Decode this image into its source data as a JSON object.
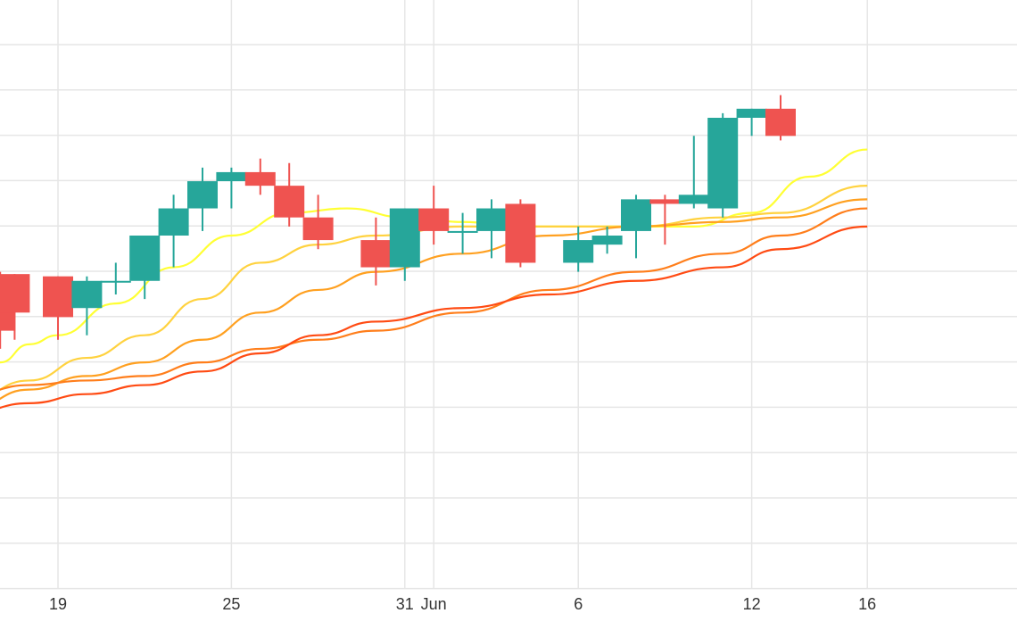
{
  "chart_data": {
    "type": "candlestick",
    "x_tick_labels": [
      "19",
      "25",
      "31",
      "Jun",
      "6",
      "12",
      "16"
    ],
    "x_ticks_day_index": [
      19,
      25,
      31,
      32,
      37,
      43,
      47
    ],
    "grid": true,
    "legend": "none",
    "y_range": [
      0,
      13
    ],
    "colors": {
      "up": "#26a69a",
      "down": "#ef5350",
      "grid": "#e6e6e6",
      "ma_series": [
        "#ffff33",
        "#ffd23f",
        "#ffa020",
        "#ff7e1b",
        "#ff4b13"
      ]
    },
    "candles": [
      {
        "day": 17,
        "open": 6.8,
        "high": 7.0,
        "low": 5.3,
        "close": 5.7
      },
      {
        "day": 17.5,
        "open": 6.95,
        "high": 6.95,
        "low": 5.5,
        "close": 6.1
      },
      {
        "day": 19,
        "open": 6.9,
        "high": 6.9,
        "low": 5.5,
        "close": 6.0
      },
      {
        "day": 20,
        "open": 6.2,
        "high": 6.9,
        "low": 5.6,
        "close": 6.8
      },
      {
        "day": 21,
        "open": 6.8,
        "high": 7.2,
        "low": 6.5,
        "close": 6.8
      },
      {
        "day": 22,
        "open": 6.8,
        "high": 7.8,
        "low": 6.4,
        "close": 7.8
      },
      {
        "day": 23,
        "open": 7.8,
        "high": 8.7,
        "low": 7.1,
        "close": 8.4
      },
      {
        "day": 24,
        "open": 8.4,
        "high": 9.3,
        "low": 7.9,
        "close": 9.0
      },
      {
        "day": 25,
        "open": 9.0,
        "high": 9.3,
        "low": 8.4,
        "close": 9.2
      },
      {
        "day": 26,
        "open": 9.2,
        "high": 9.5,
        "low": 8.7,
        "close": 8.9
      },
      {
        "day": 27,
        "open": 8.9,
        "high": 9.4,
        "low": 8.0,
        "close": 8.2
      },
      {
        "day": 28,
        "open": 8.2,
        "high": 8.7,
        "low": 7.5,
        "close": 7.7
      },
      {
        "day": 30,
        "open": 7.7,
        "high": 8.2,
        "low": 6.7,
        "close": 7.1
      },
      {
        "day": 31,
        "open": 7.1,
        "high": 8.4,
        "low": 6.8,
        "close": 8.4
      },
      {
        "day": 32,
        "open": 8.4,
        "high": 8.9,
        "low": 7.6,
        "close": 7.9
      },
      {
        "day": 33,
        "open": 7.9,
        "high": 8.3,
        "low": 7.4,
        "close": 7.9
      },
      {
        "day": 34,
        "open": 7.9,
        "high": 8.6,
        "low": 7.3,
        "close": 8.4
      },
      {
        "day": 35,
        "open": 8.5,
        "high": 8.6,
        "low": 7.1,
        "close": 7.2
      },
      {
        "day": 37,
        "open": 7.2,
        "high": 8.0,
        "low": 7.0,
        "close": 7.7
      },
      {
        "day": 38,
        "open": 7.6,
        "high": 8.0,
        "low": 7.4,
        "close": 7.8
      },
      {
        "day": 39,
        "open": 7.9,
        "high": 8.7,
        "low": 7.3,
        "close": 8.6
      },
      {
        "day": 40,
        "open": 8.6,
        "high": 8.7,
        "low": 7.6,
        "close": 8.5
      },
      {
        "day": 41,
        "open": 8.5,
        "high": 10.0,
        "low": 8.4,
        "close": 8.7
      },
      {
        "day": 42,
        "open": 8.4,
        "high": 10.5,
        "low": 8.2,
        "close": 10.4
      },
      {
        "day": 43,
        "open": 10.4,
        "high": 10.6,
        "low": 10.0,
        "close": 10.6
      },
      {
        "day": 44,
        "open": 10.6,
        "high": 10.9,
        "low": 9.9,
        "close": 10.0
      }
    ],
    "series": [
      {
        "values": [
          [
            16,
            4.6
          ],
          [
            17,
            5.0
          ],
          [
            18,
            5.4
          ],
          [
            19,
            5.6
          ],
          [
            21,
            6.3
          ],
          [
            23,
            7.1
          ],
          [
            25,
            7.8
          ],
          [
            27,
            8.3
          ],
          [
            29,
            8.4
          ],
          [
            31,
            8.2
          ],
          [
            33,
            8.1
          ],
          [
            35,
            8.0
          ],
          [
            37,
            8.0
          ],
          [
            39,
            8.0
          ],
          [
            41,
            8.0
          ],
          [
            43,
            8.3
          ],
          [
            45,
            9.1
          ],
          [
            47,
            9.7
          ]
        ]
      },
      {
        "values": [
          [
            16,
            4.2
          ],
          [
            18,
            4.6
          ],
          [
            20,
            5.1
          ],
          [
            22,
            5.6
          ],
          [
            24,
            6.4
          ],
          [
            26,
            7.2
          ],
          [
            28,
            7.6
          ],
          [
            30,
            7.8
          ],
          [
            33,
            8.0
          ],
          [
            36,
            8.0
          ],
          [
            39,
            8.0
          ],
          [
            42,
            8.2
          ],
          [
            44,
            8.3
          ],
          [
            47,
            8.9
          ]
        ]
      },
      {
        "values": [
          [
            16,
            4.0
          ],
          [
            18,
            4.4
          ],
          [
            20,
            4.7
          ],
          [
            22,
            5.0
          ],
          [
            24,
            5.5
          ],
          [
            26,
            6.1
          ],
          [
            28,
            6.6
          ],
          [
            30,
            7.0
          ],
          [
            33,
            7.4
          ],
          [
            36,
            7.8
          ],
          [
            39,
            8.0
          ],
          [
            42,
            8.1
          ],
          [
            44,
            8.2
          ],
          [
            47,
            8.6
          ]
        ]
      },
      {
        "values": [
          [
            16,
            4.3
          ],
          [
            18,
            4.5
          ],
          [
            20,
            4.6
          ],
          [
            22,
            4.7
          ],
          [
            24,
            5.0
          ],
          [
            26,
            5.3
          ],
          [
            28,
            5.5
          ],
          [
            30,
            5.7
          ],
          [
            33,
            6.1
          ],
          [
            36,
            6.6
          ],
          [
            39,
            7.0
          ],
          [
            42,
            7.4
          ],
          [
            44,
            7.8
          ],
          [
            47,
            8.4
          ]
        ]
      },
      {
        "values": [
          [
            16,
            3.9
          ],
          [
            18,
            4.1
          ],
          [
            20,
            4.3
          ],
          [
            22,
            4.5
          ],
          [
            24,
            4.8
          ],
          [
            26,
            5.2
          ],
          [
            28,
            5.6
          ],
          [
            30,
            5.9
          ],
          [
            33,
            6.2
          ],
          [
            36,
            6.5
          ],
          [
            39,
            6.8
          ],
          [
            42,
            7.1
          ],
          [
            44,
            7.5
          ],
          [
            47,
            8.0
          ]
        ]
      }
    ]
  }
}
